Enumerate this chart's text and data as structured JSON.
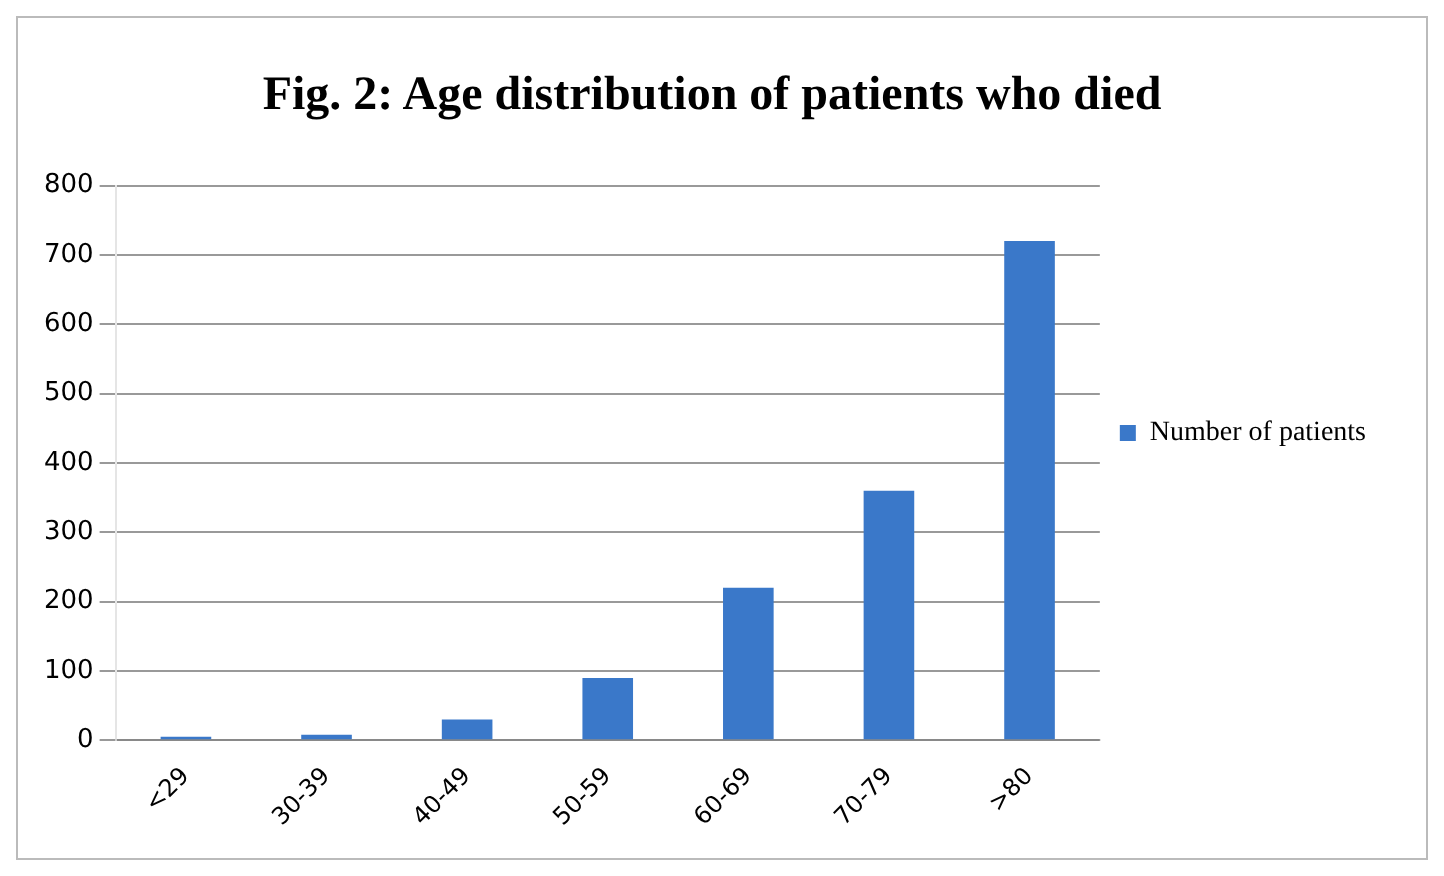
{
  "chart_data": {
    "type": "bar",
    "title": "Fig. 2: Age distribution of patients who died",
    "categories": [
      "<29",
      "30-39",
      "40-49",
      "50-59",
      "60-69",
      "70-79",
      ">80"
    ],
    "series": [
      {
        "name": "Number of patients",
        "color": "#3a78c9",
        "values": [
          5,
          8,
          30,
          90,
          220,
          360,
          720
        ]
      }
    ],
    "ylim": [
      0,
      800
    ],
    "yticks": [
      0,
      100,
      200,
      300,
      400,
      500,
      600,
      700,
      800
    ],
    "grid": "y",
    "legend": "right"
  }
}
